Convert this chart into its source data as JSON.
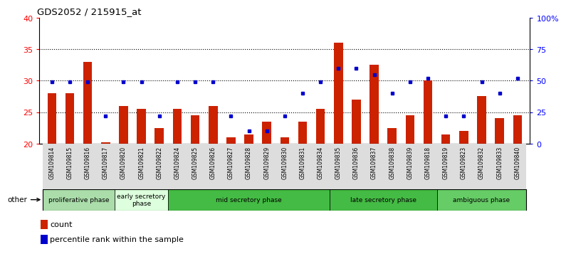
{
  "title": "GDS2052 / 215915_at",
  "samples": [
    "GSM109814",
    "GSM109815",
    "GSM109816",
    "GSM109817",
    "GSM109820",
    "GSM109821",
    "GSM109822",
    "GSM109824",
    "GSM109825",
    "GSM109826",
    "GSM109827",
    "GSM109828",
    "GSM109829",
    "GSM109830",
    "GSM109831",
    "GSM109834",
    "GSM109835",
    "GSM109836",
    "GSM109837",
    "GSM109838",
    "GSM109839",
    "GSM109818",
    "GSM109819",
    "GSM109823",
    "GSM109832",
    "GSM109833",
    "GSM109840"
  ],
  "counts": [
    28.0,
    28.0,
    33.0,
    20.2,
    26.0,
    25.5,
    22.5,
    25.5,
    24.5,
    26.0,
    21.0,
    21.5,
    23.5,
    21.0,
    23.5,
    25.5,
    36.0,
    27.0,
    32.5,
    22.5,
    24.5,
    30.0,
    21.5,
    22.0,
    27.5,
    24.0,
    24.5
  ],
  "percentiles_pct": [
    49,
    49,
    49,
    22,
    49,
    49,
    22,
    49,
    49,
    49,
    22,
    10,
    10,
    22,
    40,
    49,
    60,
    60,
    55,
    40,
    49,
    52,
    22,
    22,
    49,
    40,
    52
  ],
  "ylim": [
    20,
    40
  ],
  "yticks": [
    20,
    25,
    30,
    35,
    40
  ],
  "y2ticklabels": [
    "0",
    "25",
    "50",
    "75",
    "100%"
  ],
  "bar_color": "#cc2200",
  "dot_color": "#0000cc",
  "plot_bg": "#ffffff",
  "fig_bg": "#ffffff",
  "phases": [
    {
      "label": "proliferative phase",
      "start": 0,
      "end": 4,
      "color": "#aaddaa"
    },
    {
      "label": "early secretory\nphase",
      "start": 4,
      "end": 7,
      "color": "#ddffdd"
    },
    {
      "label": "mid secretory phase",
      "start": 7,
      "end": 16,
      "color": "#44bb44"
    },
    {
      "label": "late secretory phase",
      "start": 16,
      "end": 22,
      "color": "#44bb44"
    },
    {
      "label": "ambiguous phase",
      "start": 22,
      "end": 27,
      "color": "#66cc66"
    }
  ],
  "legend_bar_label": "count",
  "legend_dot_label": "percentile rank within the sample",
  "hline_y": [
    25,
    30,
    35
  ],
  "baseline": 20
}
